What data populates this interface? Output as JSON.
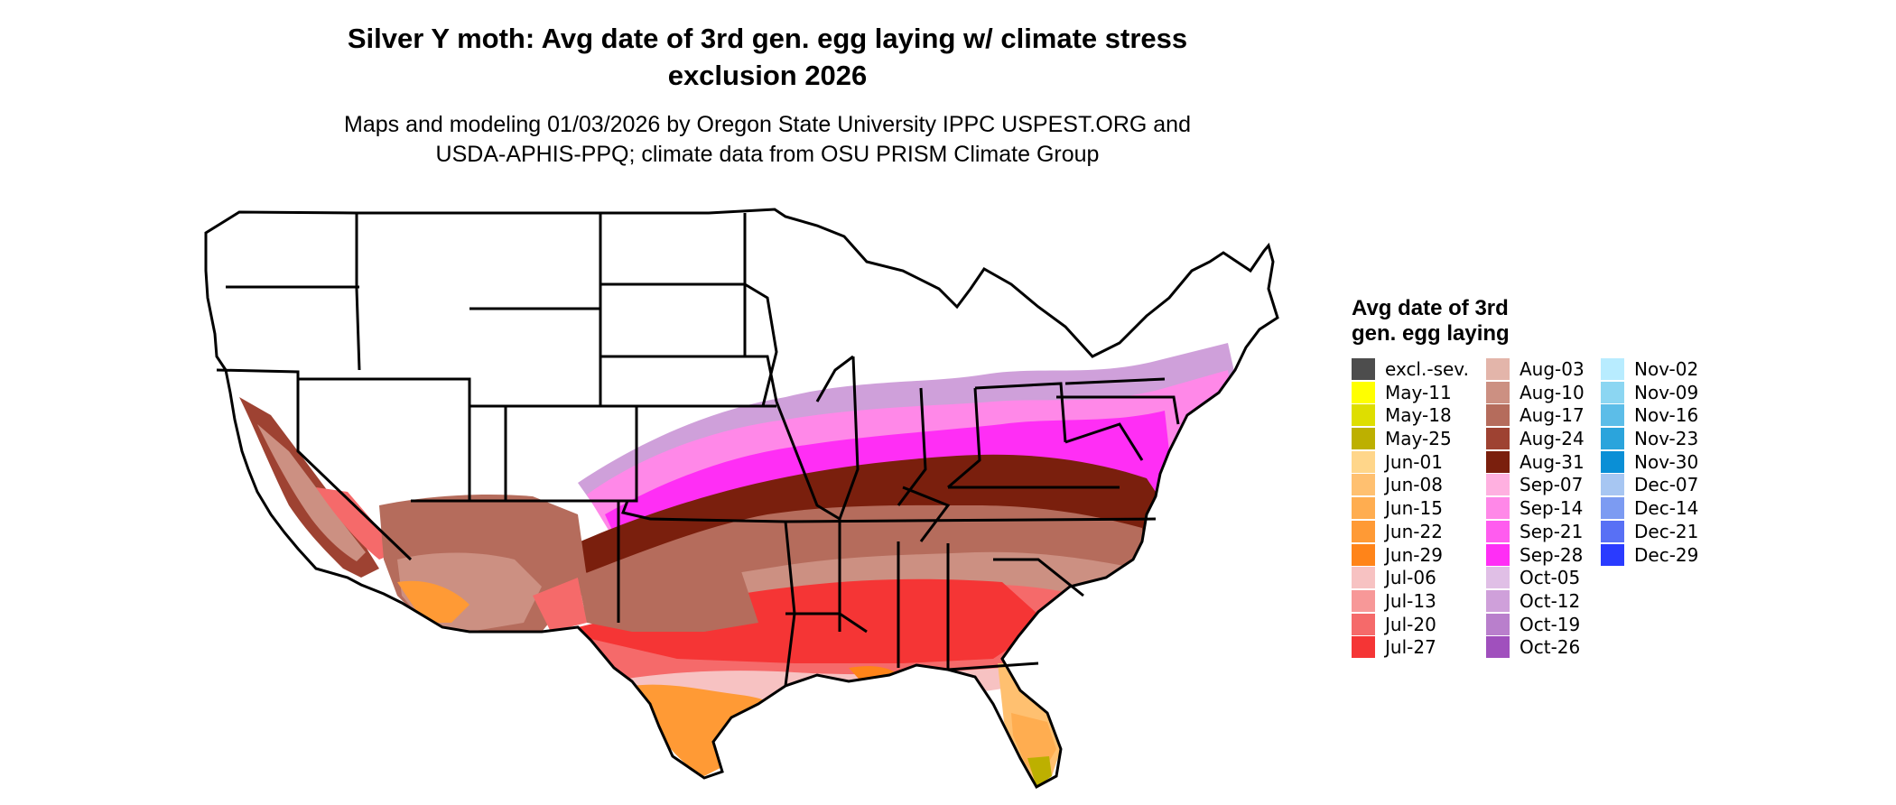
{
  "title_line1": "Silver Y moth: Avg date of 3rd gen. egg laying w/ climate stress",
  "title_line2": "exclusion 2026",
  "subtitle_line1": "Maps and modeling 01/03/2026 by Oregon State University IPPC USPEST.ORG and",
  "subtitle_line2": "USDA-APHIS-PPQ; climate data from OSU PRISM Climate Group",
  "legend": {
    "title_line1": "Avg date of 3rd",
    "title_line2": "gen. egg laying",
    "items": [
      {
        "label": "excl.-sev.",
        "color": "#4d4d4d"
      },
      {
        "label": "May-11",
        "color": "#ffff00"
      },
      {
        "label": "May-18",
        "color": "#dede00"
      },
      {
        "label": "May-25",
        "color": "#bdb000"
      },
      {
        "label": "Jun-01",
        "color": "#ffd68a"
      },
      {
        "label": "Jun-08",
        "color": "#ffc070"
      },
      {
        "label": "Jun-15",
        "color": "#ffad50"
      },
      {
        "label": "Jun-22",
        "color": "#ff9a35"
      },
      {
        "label": "Jun-29",
        "color": "#ff8419"
      },
      {
        "label": "Jul-06",
        "color": "#f7c2c2"
      },
      {
        "label": "Jul-13",
        "color": "#f79898"
      },
      {
        "label": "Jul-20",
        "color": "#f56a6a"
      },
      {
        "label": "Jul-27",
        "color": "#f53535"
      },
      {
        "label": "Aug-03",
        "color": "#e3b5aa"
      },
      {
        "label": "Aug-10",
        "color": "#cc9082"
      },
      {
        "label": "Aug-17",
        "color": "#b56c5c"
      },
      {
        "label": "Aug-24",
        "color": "#9e4232"
      },
      {
        "label": "Aug-31",
        "color": "#7a1f0d"
      },
      {
        "label": "Sep-07",
        "color": "#ffb0e0"
      },
      {
        "label": "Sep-14",
        "color": "#ff88e8"
      },
      {
        "label": "Sep-21",
        "color": "#ff5cef"
      },
      {
        "label": "Sep-28",
        "color": "#ff2ef5"
      },
      {
        "label": "Oct-05",
        "color": "#e0bfe6"
      },
      {
        "label": "Oct-12",
        "color": "#cfa0da"
      },
      {
        "label": "Oct-19",
        "color": "#b97fcc"
      },
      {
        "label": "Oct-26",
        "color": "#a050bd"
      },
      {
        "label": "Nov-02",
        "color": "#b8ecff"
      },
      {
        "label": "Nov-09",
        "color": "#8cd6f2"
      },
      {
        "label": "Nov-16",
        "color": "#5cbde8"
      },
      {
        "label": "Nov-23",
        "color": "#2ba4dc"
      },
      {
        "label": "Nov-30",
        "color": "#0a8fd6"
      },
      {
        "label": "Dec-07",
        "color": "#a7c6f2"
      },
      {
        "label": "Dec-14",
        "color": "#7c9bf2"
      },
      {
        "label": "Dec-21",
        "color": "#5870f5"
      },
      {
        "label": "Dec-29",
        "color": "#2a3bff"
      }
    ]
  }
}
